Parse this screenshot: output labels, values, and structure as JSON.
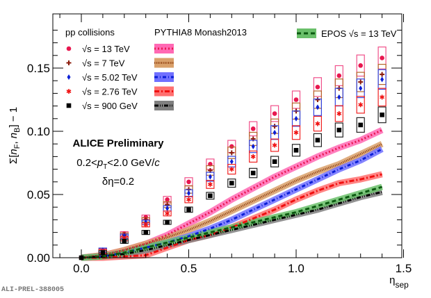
{
  "chart_data": {
    "type": "scatter",
    "title": "",
    "xlabel": "η_sep",
    "ylabel": "Σ[n_F, n_B] − 1",
    "xlim": [
      -0.12,
      1.52
    ],
    "ylim": [
      0.0,
      0.18
    ],
    "x_ticks": [
      "0.0",
      "0.5",
      "1.0",
      "1.5"
    ],
    "y_ticks": [
      "0.00",
      "0.05",
      "0.10",
      "0.15"
    ],
    "x_tick_values": [
      0.0,
      0.5,
      1.0,
      1.5
    ],
    "y_tick_values": [
      0.0,
      0.05,
      0.1,
      0.15
    ],
    "grid": false,
    "x": [
      0.0,
      0.1,
      0.2,
      0.3,
      0.4,
      0.5,
      0.6,
      0.7,
      0.8,
      0.9,
      1.0,
      1.1,
      1.2,
      1.3,
      1.4
    ],
    "series": [
      {
        "name": "√s = 13 TeV",
        "marker": "circle",
        "color": "#e8174f",
        "syst_color": "#f0508a",
        "values": [
          0.0,
          0.0055,
          0.019,
          0.032,
          0.046,
          0.06,
          0.074,
          0.088,
          0.102,
          0.114,
          0.125,
          0.135,
          0.144,
          0.152,
          0.158
        ]
      },
      {
        "name": "√s = 7 TeV",
        "marker": "cross",
        "color": "#8b1a0a",
        "syst_color": "#b5652a",
        "values": [
          0.0,
          0.006,
          0.018,
          0.03,
          0.042,
          0.054,
          0.069,
          0.083,
          0.094,
          0.104,
          0.116,
          0.125,
          0.134,
          0.139,
          0.145
        ]
      },
      {
        "name": "√s = 5.02 TeV",
        "marker": "diamond",
        "color": "#0b1fd6",
        "syst_color": "#3344e0",
        "values": [
          0.0,
          0.006,
          0.017,
          0.028,
          0.039,
          0.051,
          0.064,
          0.076,
          0.088,
          0.099,
          0.11,
          0.119,
          0.127,
          0.134,
          0.141
        ]
      },
      {
        "name": "√s = 2.76 TeV",
        "marker": "star",
        "color": "#f01010",
        "syst_color": "#f02020",
        "values": [
          0.0,
          0.005,
          0.015,
          0.026,
          0.035,
          0.046,
          0.058,
          0.07,
          0.08,
          0.089,
          0.099,
          0.106,
          0.114,
          0.121,
          0.127
        ]
      },
      {
        "name": "√s = 900 GeV",
        "marker": "square",
        "color": "#000000",
        "syst_color": "#222222",
        "values": [
          0.0,
          0.004,
          0.013,
          0.02,
          0.028,
          0.038,
          0.049,
          0.059,
          0.067,
          0.076,
          0.085,
          0.093,
          0.101,
          0.105,
          0.113
        ]
      }
    ],
    "models": [
      {
        "name": "PYTHIA8 13 TeV",
        "band": "#ff69b4",
        "line": "#e8174f",
        "dash": "2 3",
        "x": [
          0.0,
          0.1,
          0.2,
          0.3,
          0.4,
          0.5,
          0.6,
          0.7,
          0.8,
          0.9,
          1.0,
          1.1,
          1.2,
          1.3,
          1.4
        ],
        "values": [
          0.0,
          0.002,
          0.006,
          0.011,
          0.018,
          0.027,
          0.036,
          0.046,
          0.055,
          0.064,
          0.072,
          0.08,
          0.087,
          0.093,
          0.101
        ]
      },
      {
        "name": "PYTHIA8 7 TeV",
        "band": "#d9a06a",
        "line": "#8b3a0a",
        "dash": "1 1.5",
        "x": [
          0.0,
          0.1,
          0.2,
          0.3,
          0.4,
          0.5,
          0.6,
          0.7,
          0.8,
          0.9,
          1.0,
          1.1,
          1.2,
          1.3,
          1.4
        ],
        "values": [
          0.0,
          0.002,
          0.006,
          0.011,
          0.016,
          0.022,
          0.029,
          0.037,
          0.045,
          0.053,
          0.061,
          0.068,
          0.074,
          0.082,
          0.09
        ]
      },
      {
        "name": "PYTHIA8 5.02 TeV",
        "band": "#7070ff",
        "line": "#0b1fd6",
        "dash": "5 3 1 3",
        "x": [
          0.0,
          0.1,
          0.2,
          0.3,
          0.4,
          0.5,
          0.6,
          0.7,
          0.8,
          0.9,
          1.0,
          1.1,
          1.2,
          1.3,
          1.4
        ],
        "values": [
          0.0,
          0.001,
          0.004,
          0.008,
          0.012,
          0.017,
          0.023,
          0.03,
          0.038,
          0.046,
          0.054,
          0.062,
          0.07,
          0.077,
          0.086
        ]
      },
      {
        "name": "PYTHIA8 2.76 TeV",
        "band": "#ff7070",
        "line": "#f01010",
        "dash": "7 3 2 3",
        "x": [
          0.0,
          0.1,
          0.2,
          0.3,
          0.4,
          0.5,
          0.6,
          0.7,
          0.8,
          0.9,
          1.0,
          1.1,
          1.2,
          1.3,
          1.4
        ],
        "values": [
          0.0,
          0.0,
          0.001,
          0.002,
          0.008,
          0.014,
          0.018,
          0.024,
          0.031,
          0.038,
          0.046,
          0.053,
          0.059,
          0.062,
          0.066
        ]
      },
      {
        "name": "PYTHIA8 900 GeV",
        "band": "#808080",
        "line": "#000000",
        "dash": "6 2 1 2 1 2",
        "x": [
          0.0,
          0.1,
          0.2,
          0.3,
          0.4,
          0.5,
          0.6,
          0.7,
          0.8,
          0.9,
          1.0,
          1.1,
          1.2,
          1.3,
          1.4
        ],
        "values": [
          0.0,
          0.001,
          0.003,
          0.006,
          0.01,
          0.014,
          0.018,
          0.022,
          0.026,
          0.03,
          0.034,
          0.038,
          0.043,
          0.048,
          0.052
        ]
      },
      {
        "name": "EPOS 13 TeV",
        "band": "#6abf6a",
        "line": "#0b5a10",
        "dash": "6 4",
        "x": [
          0.0,
          0.1,
          0.2,
          0.3,
          0.4,
          0.5,
          0.6,
          0.7,
          0.8,
          0.9,
          1.0,
          1.1,
          1.2,
          1.3,
          1.4
        ],
        "values": [
          0.0,
          0.001,
          0.004,
          0.008,
          0.012,
          0.016,
          0.02,
          0.024,
          0.028,
          0.032,
          0.036,
          0.041,
          0.046,
          0.051,
          0.056
        ]
      }
    ],
    "legend": {
      "placement": "top-left",
      "data_header": "pp collisions",
      "model_header": "PYTHIA8 Monash2013",
      "entries": [
        "√s = 13 TeV",
        "√s = 7 TeV",
        "√s = 5.02 TeV",
        "√s = 2.76 TeV",
        "√s = 900 GeV"
      ],
      "epos_label": "EPOS √s = 13 TeV"
    },
    "annotations": {
      "experiment": "ALICE Preliminary",
      "pt_range": "0.2<pT<2.0 GeV/c",
      "deta": "δη=0.2"
    }
  },
  "footer_id": "ALI-PREL-388005"
}
